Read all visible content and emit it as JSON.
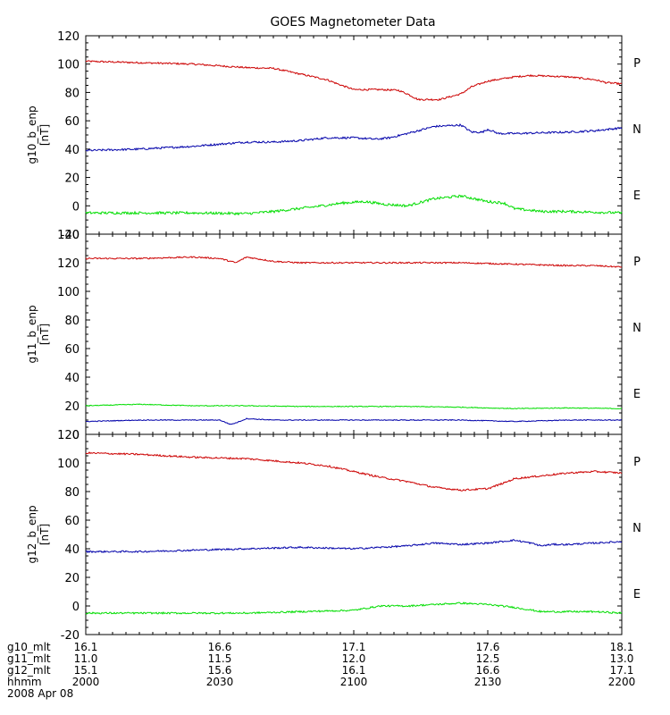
{
  "chart_data": {
    "type": "line",
    "title": "GOES Magnetometer Data",
    "x_range": [
      "2000",
      "2200"
    ],
    "x_ticks": [
      "2000",
      "2030",
      "2100",
      "2130",
      "2200"
    ],
    "panels": [
      {
        "ylabel": "g10_b_enp",
        "units": "[nT]",
        "ylim": [
          -20,
          120
        ],
        "yticks": [
          "120",
          "100",
          "80",
          "60",
          "40",
          "20",
          "0",
          "-20"
        ],
        "legend": [
          "P",
          "N",
          "E"
        ],
        "series": [
          {
            "name": "P",
            "color": "#cc0000",
            "noise": 0.6,
            "points": [
              [
                0,
                102
              ],
              [
                0.1,
                101
              ],
              [
                0.2,
                100
              ],
              [
                0.3,
                97.5
              ],
              [
                0.35,
                97
              ],
              [
                0.4,
                93
              ],
              [
                0.45,
                89
              ],
              [
                0.47,
                86
              ],
              [
                0.5,
                82
              ],
              [
                0.55,
                82
              ],
              [
                0.5833,
                81.5
              ],
              [
                0.6,
                79
              ],
              [
                0.62,
                75
              ],
              [
                0.66,
                75
              ],
              [
                0.7,
                79
              ],
              [
                0.72,
                84
              ],
              [
                0.75,
                88
              ],
              [
                0.8,
                91
              ],
              [
                0.83,
                92
              ],
              [
                0.9,
                91
              ],
              [
                0.95,
                89
              ],
              [
                0.97,
                87
              ],
              [
                1,
                86
              ]
            ]
          },
          {
            "name": "N",
            "color": "#0000aa",
            "noise": 0.7,
            "points": [
              [
                0,
                39
              ],
              [
                0.1,
                40
              ],
              [
                0.2,
                42
              ],
              [
                0.3,
                45
              ],
              [
                0.35,
                45
              ],
              [
                0.4,
                46
              ],
              [
                0.45,
                48
              ],
              [
                0.5,
                48
              ],
              [
                0.5417,
                47
              ],
              [
                0.5667,
                48
              ],
              [
                0.6,
                51
              ],
              [
                0.65,
                56
              ],
              [
                0.7,
                57
              ],
              [
                0.72,
                52
              ],
              [
                0.74,
                52
              ],
              [
                0.75,
                54
              ],
              [
                0.77,
                51
              ],
              [
                0.8,
                51
              ],
              [
                0.9,
                52
              ],
              [
                0.95,
                53
              ],
              [
                1,
                55
              ]
            ]
          },
          {
            "name": "E",
            "color": "#00dd00",
            "noise": 0.9,
            "points": [
              [
                0,
                -5
              ],
              [
                0.1,
                -5
              ],
              [
                0.2,
                -5
              ],
              [
                0.3,
                -5.5
              ],
              [
                0.35,
                -4
              ],
              [
                0.42,
                -1
              ],
              [
                0.48,
                2
              ],
              [
                0.52,
                3
              ],
              [
                0.56,
                1
              ],
              [
                0.6,
                0
              ],
              [
                0.65,
                5
              ],
              [
                0.7,
                7
              ],
              [
                0.75,
                3
              ],
              [
                0.78,
                2
              ],
              [
                0.8,
                -2
              ],
              [
                0.85,
                -4
              ],
              [
                0.9,
                -4
              ],
              [
                0.95,
                -4.5
              ],
              [
                1,
                -5
              ]
            ]
          }
        ]
      },
      {
        "ylabel": "g11_b_enp",
        "units": "[nT]",
        "ylim": [
          0,
          140
        ],
        "yticks": [
          "140",
          "120",
          "100",
          "80",
          "60",
          "40",
          "20",
          "0"
        ],
        "legend": [
          "P",
          "N",
          "E"
        ],
        "series": [
          {
            "name": "P",
            "color": "#cc0000",
            "noise": 0.5,
            "points": [
              [
                0,
                123
              ],
              [
                0.1,
                123
              ],
              [
                0.2,
                124
              ],
              [
                0.25,
                123
              ],
              [
                0.27,
                121
              ],
              [
                0.28,
                120
              ],
              [
                0.3,
                124
              ],
              [
                0.35,
                121
              ],
              [
                0.4,
                120
              ],
              [
                0.5,
                120
              ],
              [
                0.6,
                120
              ],
              [
                0.7,
                120
              ],
              [
                0.8,
                119
              ],
              [
                0.9,
                118
              ],
              [
                0.95,
                118
              ],
              [
                1,
                117
              ]
            ]
          },
          {
            "name": "N",
            "color": "#00dd00",
            "noise": 0.3,
            "points": [
              [
                0,
                20
              ],
              [
                0.1,
                21
              ],
              [
                0.2,
                20
              ],
              [
                0.3,
                20
              ],
              [
                0.4,
                19.5
              ],
              [
                0.5,
                19.5
              ],
              [
                0.6,
                19.5
              ],
              [
                0.7,
                19
              ],
              [
                0.8,
                18
              ],
              [
                0.9,
                18.5
              ],
              [
                1,
                18
              ]
            ]
          },
          {
            "name": "E",
            "color": "#0000aa",
            "noise": 0.3,
            "points": [
              [
                0,
                9
              ],
              [
                0.1,
                10
              ],
              [
                0.2,
                10
              ],
              [
                0.25,
                10
              ],
              [
                0.27,
                7
              ],
              [
                0.28,
                8
              ],
              [
                0.3,
                11
              ],
              [
                0.35,
                10
              ],
              [
                0.4,
                10
              ],
              [
                0.5,
                10
              ],
              [
                0.6,
                10
              ],
              [
                0.7,
                10
              ],
              [
                0.8,
                9
              ],
              [
                0.9,
                10
              ],
              [
                1,
                10
              ]
            ]
          }
        ]
      },
      {
        "ylabel": "g12_b_enp",
        "units": "[nT]",
        "ylim": [
          -20,
          120
        ],
        "yticks": [
          "120",
          "100",
          "80",
          "60",
          "40",
          "20",
          "0",
          "-20"
        ],
        "legend": [
          "P",
          "N",
          "E"
        ],
        "series": [
          {
            "name": "P",
            "color": "#cc0000",
            "noise": 0.6,
            "points": [
              [
                0,
                107
              ],
              [
                0.1,
                106
              ],
              [
                0.2,
                104
              ],
              [
                0.3,
                103
              ],
              [
                0.4,
                100
              ],
              [
                0.45,
                98
              ],
              [
                0.5,
                94
              ],
              [
                0.55,
                90
              ],
              [
                0.6,
                87
              ],
              [
                0.65,
                83
              ],
              [
                0.7,
                81
              ],
              [
                0.75,
                82
              ],
              [
                0.78,
                86
              ],
              [
                0.8,
                89
              ],
              [
                0.9,
                93
              ],
              [
                0.95,
                94
              ],
              [
                1,
                93
              ]
            ]
          },
          {
            "name": "N",
            "color": "#0000aa",
            "noise": 0.6,
            "points": [
              [
                0,
                38
              ],
              [
                0.1,
                38
              ],
              [
                0.2,
                39
              ],
              [
                0.3,
                40
              ],
              [
                0.4,
                41
              ],
              [
                0.5,
                40
              ],
              [
                0.6,
                42
              ],
              [
                0.65,
                44
              ],
              [
                0.7,
                43
              ],
              [
                0.75,
                44
              ],
              [
                0.8,
                46
              ],
              [
                0.83,
                44
              ],
              [
                0.85,
                42
              ],
              [
                0.87,
                43
              ],
              [
                0.9,
                43
              ],
              [
                0.95,
                44
              ],
              [
                1,
                45
              ]
            ]
          },
          {
            "name": "E",
            "color": "#00dd00",
            "noise": 0.6,
            "points": [
              [
                0,
                -5
              ],
              [
                0.1,
                -5
              ],
              [
                0.2,
                -5
              ],
              [
                0.3,
                -5
              ],
              [
                0.4,
                -4
              ],
              [
                0.5,
                -3
              ],
              [
                0.55,
                0
              ],
              [
                0.6,
                0
              ],
              [
                0.65,
                1
              ],
              [
                0.7,
                2
              ],
              [
                0.75,
                1
              ],
              [
                0.8,
                -1
              ],
              [
                0.85,
                -4
              ],
              [
                0.9,
                -4
              ],
              [
                0.95,
                -4
              ],
              [
                1,
                -5
              ]
            ]
          }
        ]
      }
    ]
  },
  "footer": {
    "row_labels": [
      "g10_mlt",
      "g11_mlt",
      "g12_mlt",
      "hhmm"
    ],
    "columns": [
      [
        "16.1",
        "11.0",
        "15.1",
        "2000"
      ],
      [
        "16.6",
        "11.5",
        "15.6",
        "2030"
      ],
      [
        "17.1",
        "12.0",
        "16.1",
        "2100"
      ],
      [
        "17.6",
        "12.5",
        "16.6",
        "2130"
      ],
      [
        "18.1",
        "13.0",
        "17.1",
        "2200"
      ]
    ],
    "date": "2008 Apr 08"
  }
}
